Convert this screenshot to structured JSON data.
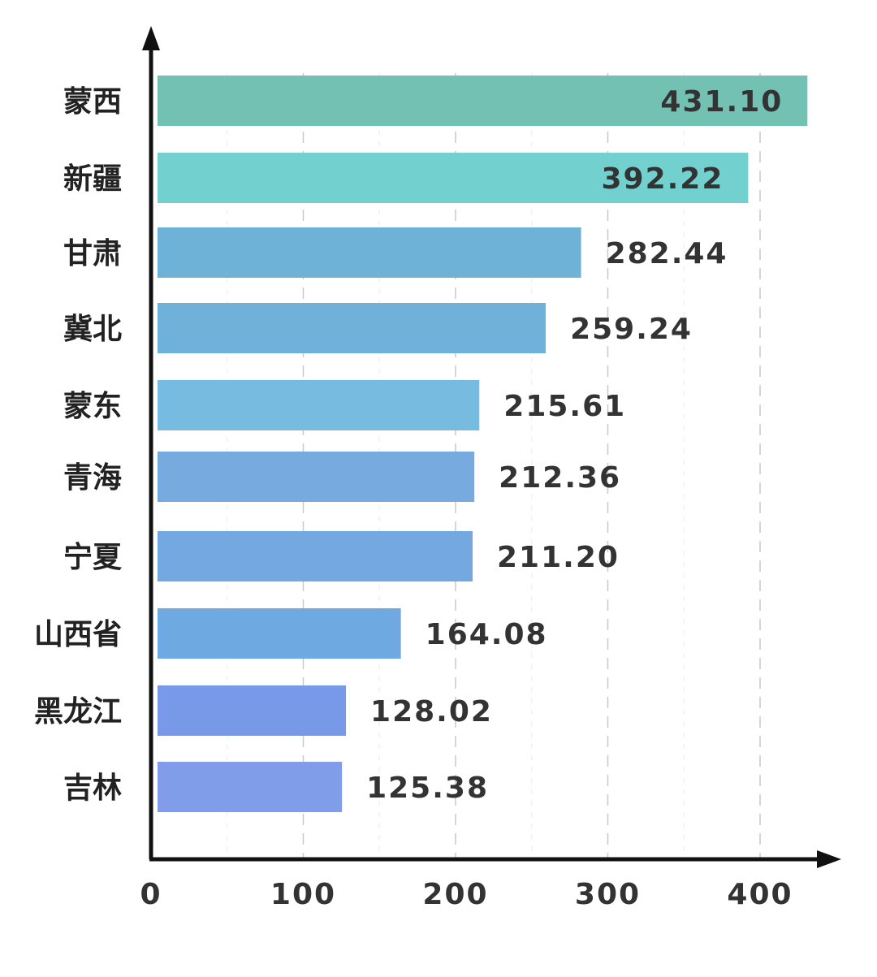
{
  "chart_data": {
    "type": "bar",
    "orientation": "horizontal",
    "categories": [
      "蒙西",
      "新疆",
      "甘肃",
      "冀北",
      "蒙东",
      "青海",
      "宁夏",
      "山西省",
      "黑龙江",
      "吉林"
    ],
    "values": [
      431.1,
      392.22,
      282.44,
      259.24,
      215.61,
      212.36,
      211.2,
      164.08,
      128.02,
      125.38
    ],
    "value_labels": [
      "431.10",
      "392.22",
      "282.44",
      "259.24",
      "215.61",
      "212.36",
      "211.20",
      "164.08",
      "128.02",
      "125.38"
    ],
    "bar_colors": [
      "#72c1b3",
      "#72d0cf",
      "#6fb2d7",
      "#6fb1d8",
      "#78bbe1",
      "#77abe0",
      "#73a8e0",
      "#6fa9e2",
      "#7799e8",
      "#7f9de9"
    ],
    "x_ticks": [
      "0",
      "100",
      "200",
      "300",
      "400"
    ],
    "xlim": [
      0,
      450
    ],
    "title": "",
    "xlabel": "",
    "ylabel": "",
    "grid": "vertical dashed",
    "legend": "none"
  }
}
